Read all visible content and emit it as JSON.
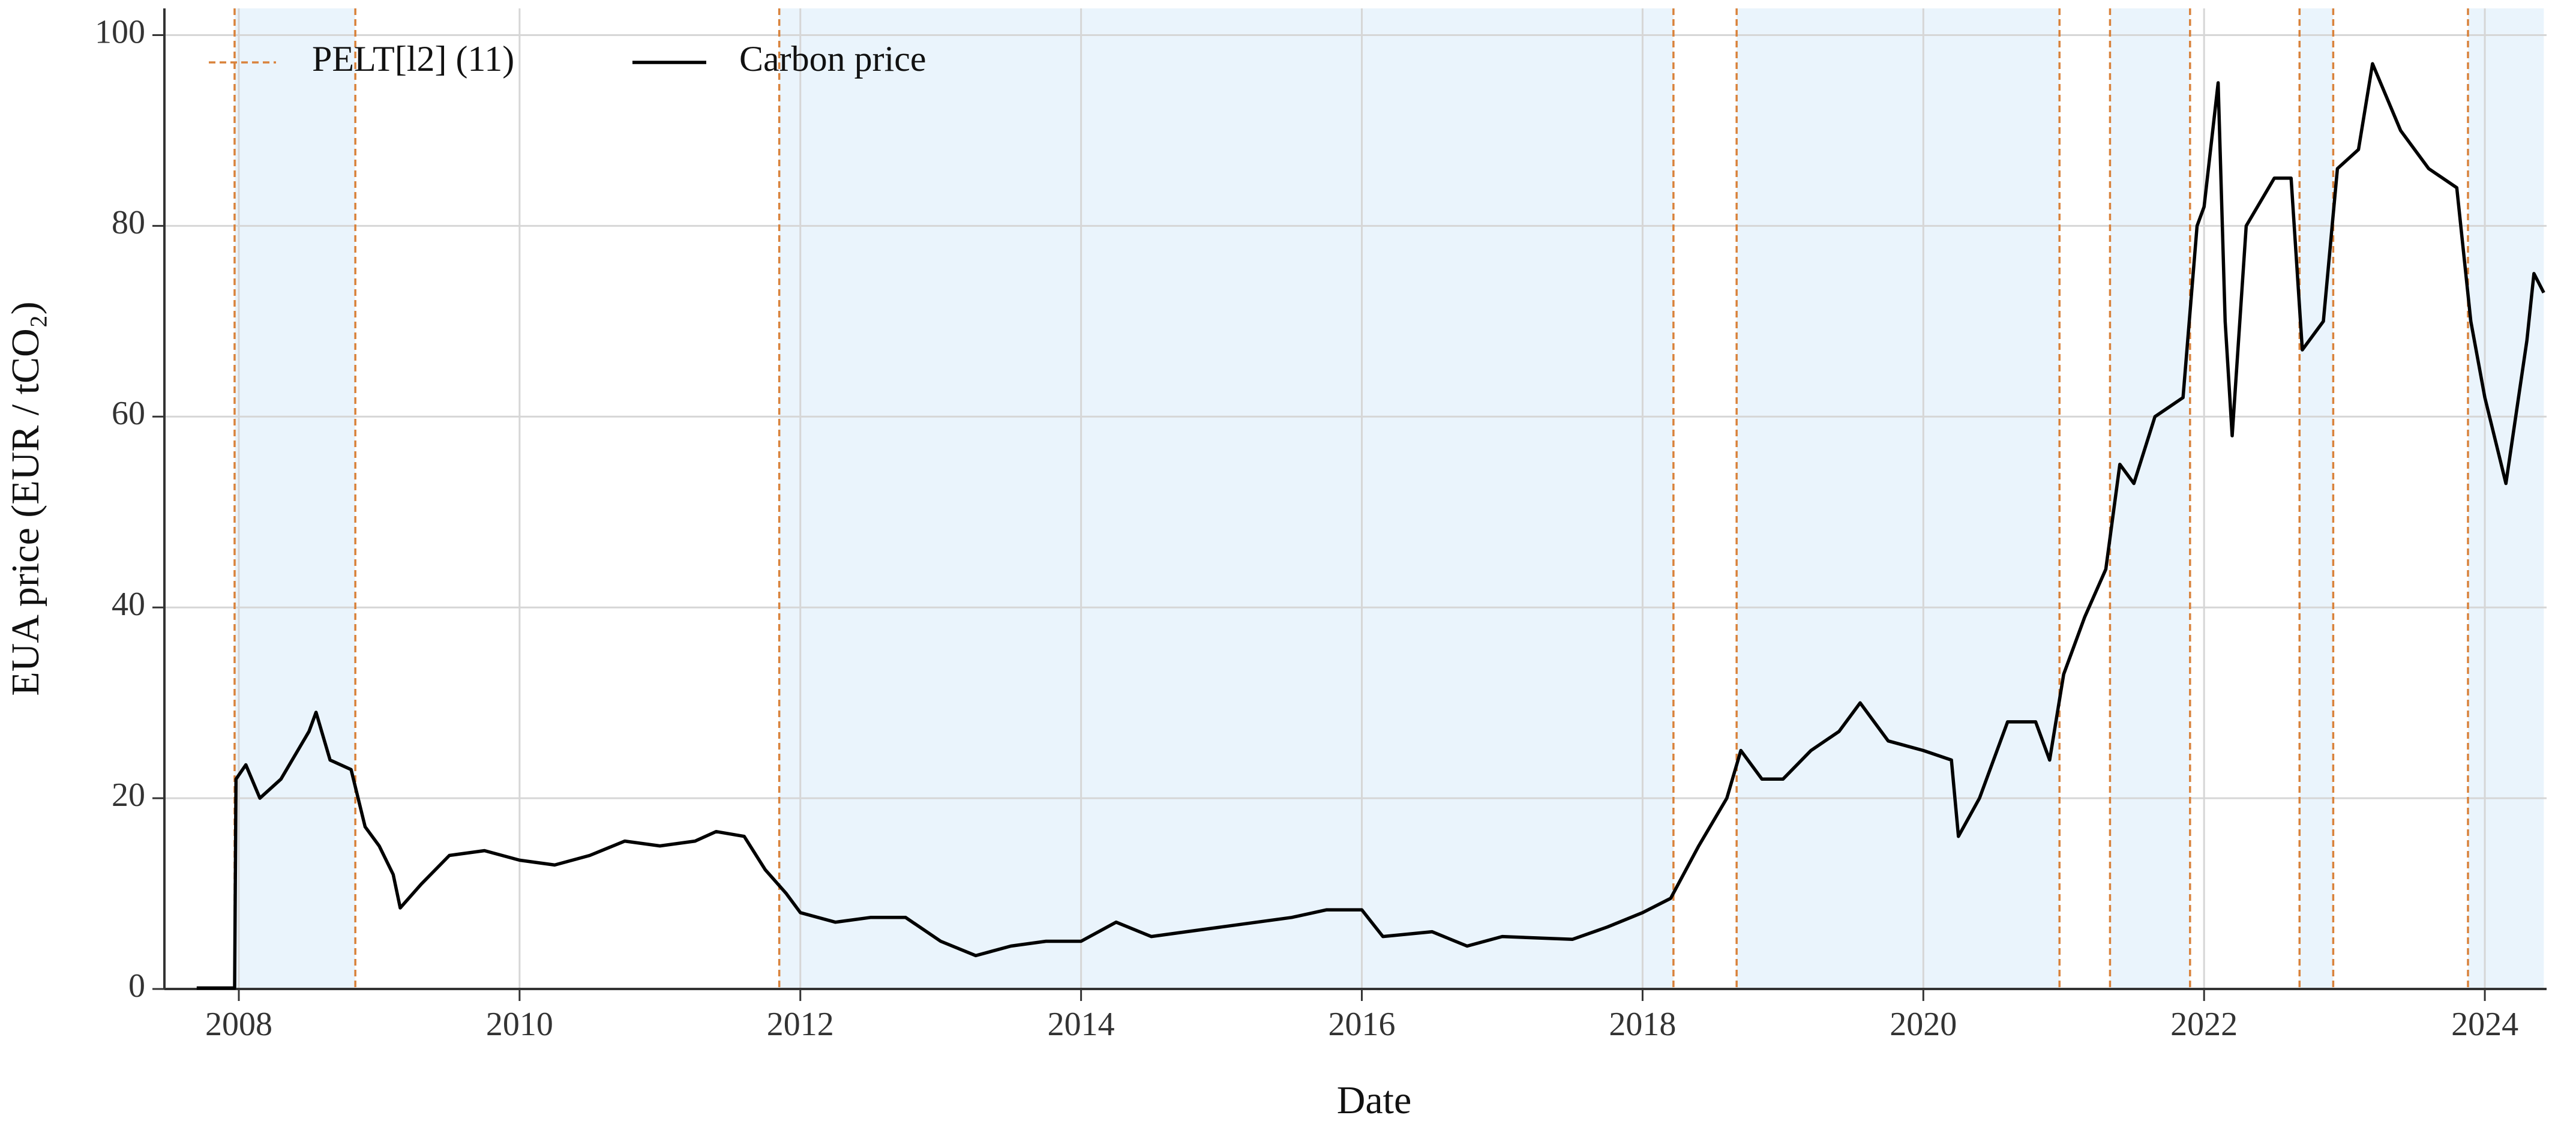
{
  "chart_data": {
    "type": "line",
    "xlabel": "Date",
    "ylabel": "EUA price (EUR / tCO₂)",
    "xlim": [
      2007.47,
      2024.44
    ],
    "ylim": [
      0,
      102.8
    ],
    "xticks": [
      2008,
      2010,
      2012,
      2014,
      2016,
      2018,
      2020,
      2022,
      2024
    ],
    "yticks": [
      0,
      20,
      40,
      60,
      80,
      100
    ],
    "grid": true,
    "legend": "upper left",
    "shade_color": "#eaf4fc",
    "changepoints": {
      "name": "PELT[l2] (11)",
      "color": "#d9823b",
      "x": [
        2007.97,
        2008.83,
        2011.85,
        2018.22,
        2018.67,
        2020.97,
        2021.33,
        2021.9,
        2022.68,
        2022.92,
        2023.88
      ]
    },
    "series": [
      {
        "name": "Carbon price",
        "color": "#000000",
        "x": [
          2007.7,
          2007.97,
          2007.98,
          2008.05,
          2008.15,
          2008.3,
          2008.5,
          2008.55,
          2008.65,
          2008.8,
          2008.9,
          2009.0,
          2009.1,
          2009.15,
          2009.3,
          2009.5,
          2009.75,
          2010.0,
          2010.25,
          2010.5,
          2010.75,
          2011.0,
          2011.25,
          2011.4,
          2011.6,
          2011.75,
          2011.9,
          2012.0,
          2012.25,
          2012.5,
          2012.75,
          2013.0,
          2013.25,
          2013.5,
          2013.75,
          2014.0,
          2014.25,
          2014.5,
          2014.75,
          2015.0,
          2015.5,
          2015.75,
          2016.0,
          2016.15,
          2016.5,
          2016.75,
          2017.0,
          2017.5,
          2017.75,
          2018.0,
          2018.2,
          2018.4,
          2018.6,
          2018.7,
          2018.85,
          2019.0,
          2019.2,
          2019.4,
          2019.55,
          2019.75,
          2020.0,
          2020.2,
          2020.25,
          2020.4,
          2020.6,
          2020.8,
          2020.9,
          2021.0,
          2021.15,
          2021.3,
          2021.4,
          2021.5,
          2021.65,
          2021.85,
          2021.95,
          2022.0,
          2022.1,
          2022.15,
          2022.2,
          2022.3,
          2022.5,
          2022.62,
          2022.7,
          2022.85,
          2022.95,
          2023.1,
          2023.2,
          2023.4,
          2023.6,
          2023.8,
          2023.9,
          2024.0,
          2024.1,
          2024.15,
          2024.3,
          2024.35,
          2024.42
        ],
        "values": [
          0.1,
          0.1,
          22,
          23.5,
          20,
          22,
          27,
          29,
          24,
          23,
          17,
          15,
          12,
          8.5,
          11,
          14,
          14.5,
          13.5,
          13,
          14,
          15.5,
          15,
          15.5,
          16.5,
          16,
          12.5,
          10,
          8,
          7,
          7.5,
          7.5,
          5,
          3.5,
          4.5,
          5,
          5,
          7,
          5.5,
          6,
          6.5,
          7.5,
          8.3,
          8.3,
          5.5,
          6,
          4.5,
          5.5,
          5.2,
          6.5,
          8,
          9.5,
          15,
          20,
          25,
          22,
          22,
          25,
          27,
          30,
          26,
          25,
          24,
          16,
          20,
          28,
          28,
          24,
          33,
          39,
          44,
          55,
          53,
          60,
          62,
          80,
          82,
          95,
          70,
          58,
          80,
          85,
          85,
          67,
          70,
          86,
          88,
          97,
          90,
          86,
          84,
          70,
          62,
          56,
          53,
          68,
          75,
          73
        ]
      }
    ]
  }
}
